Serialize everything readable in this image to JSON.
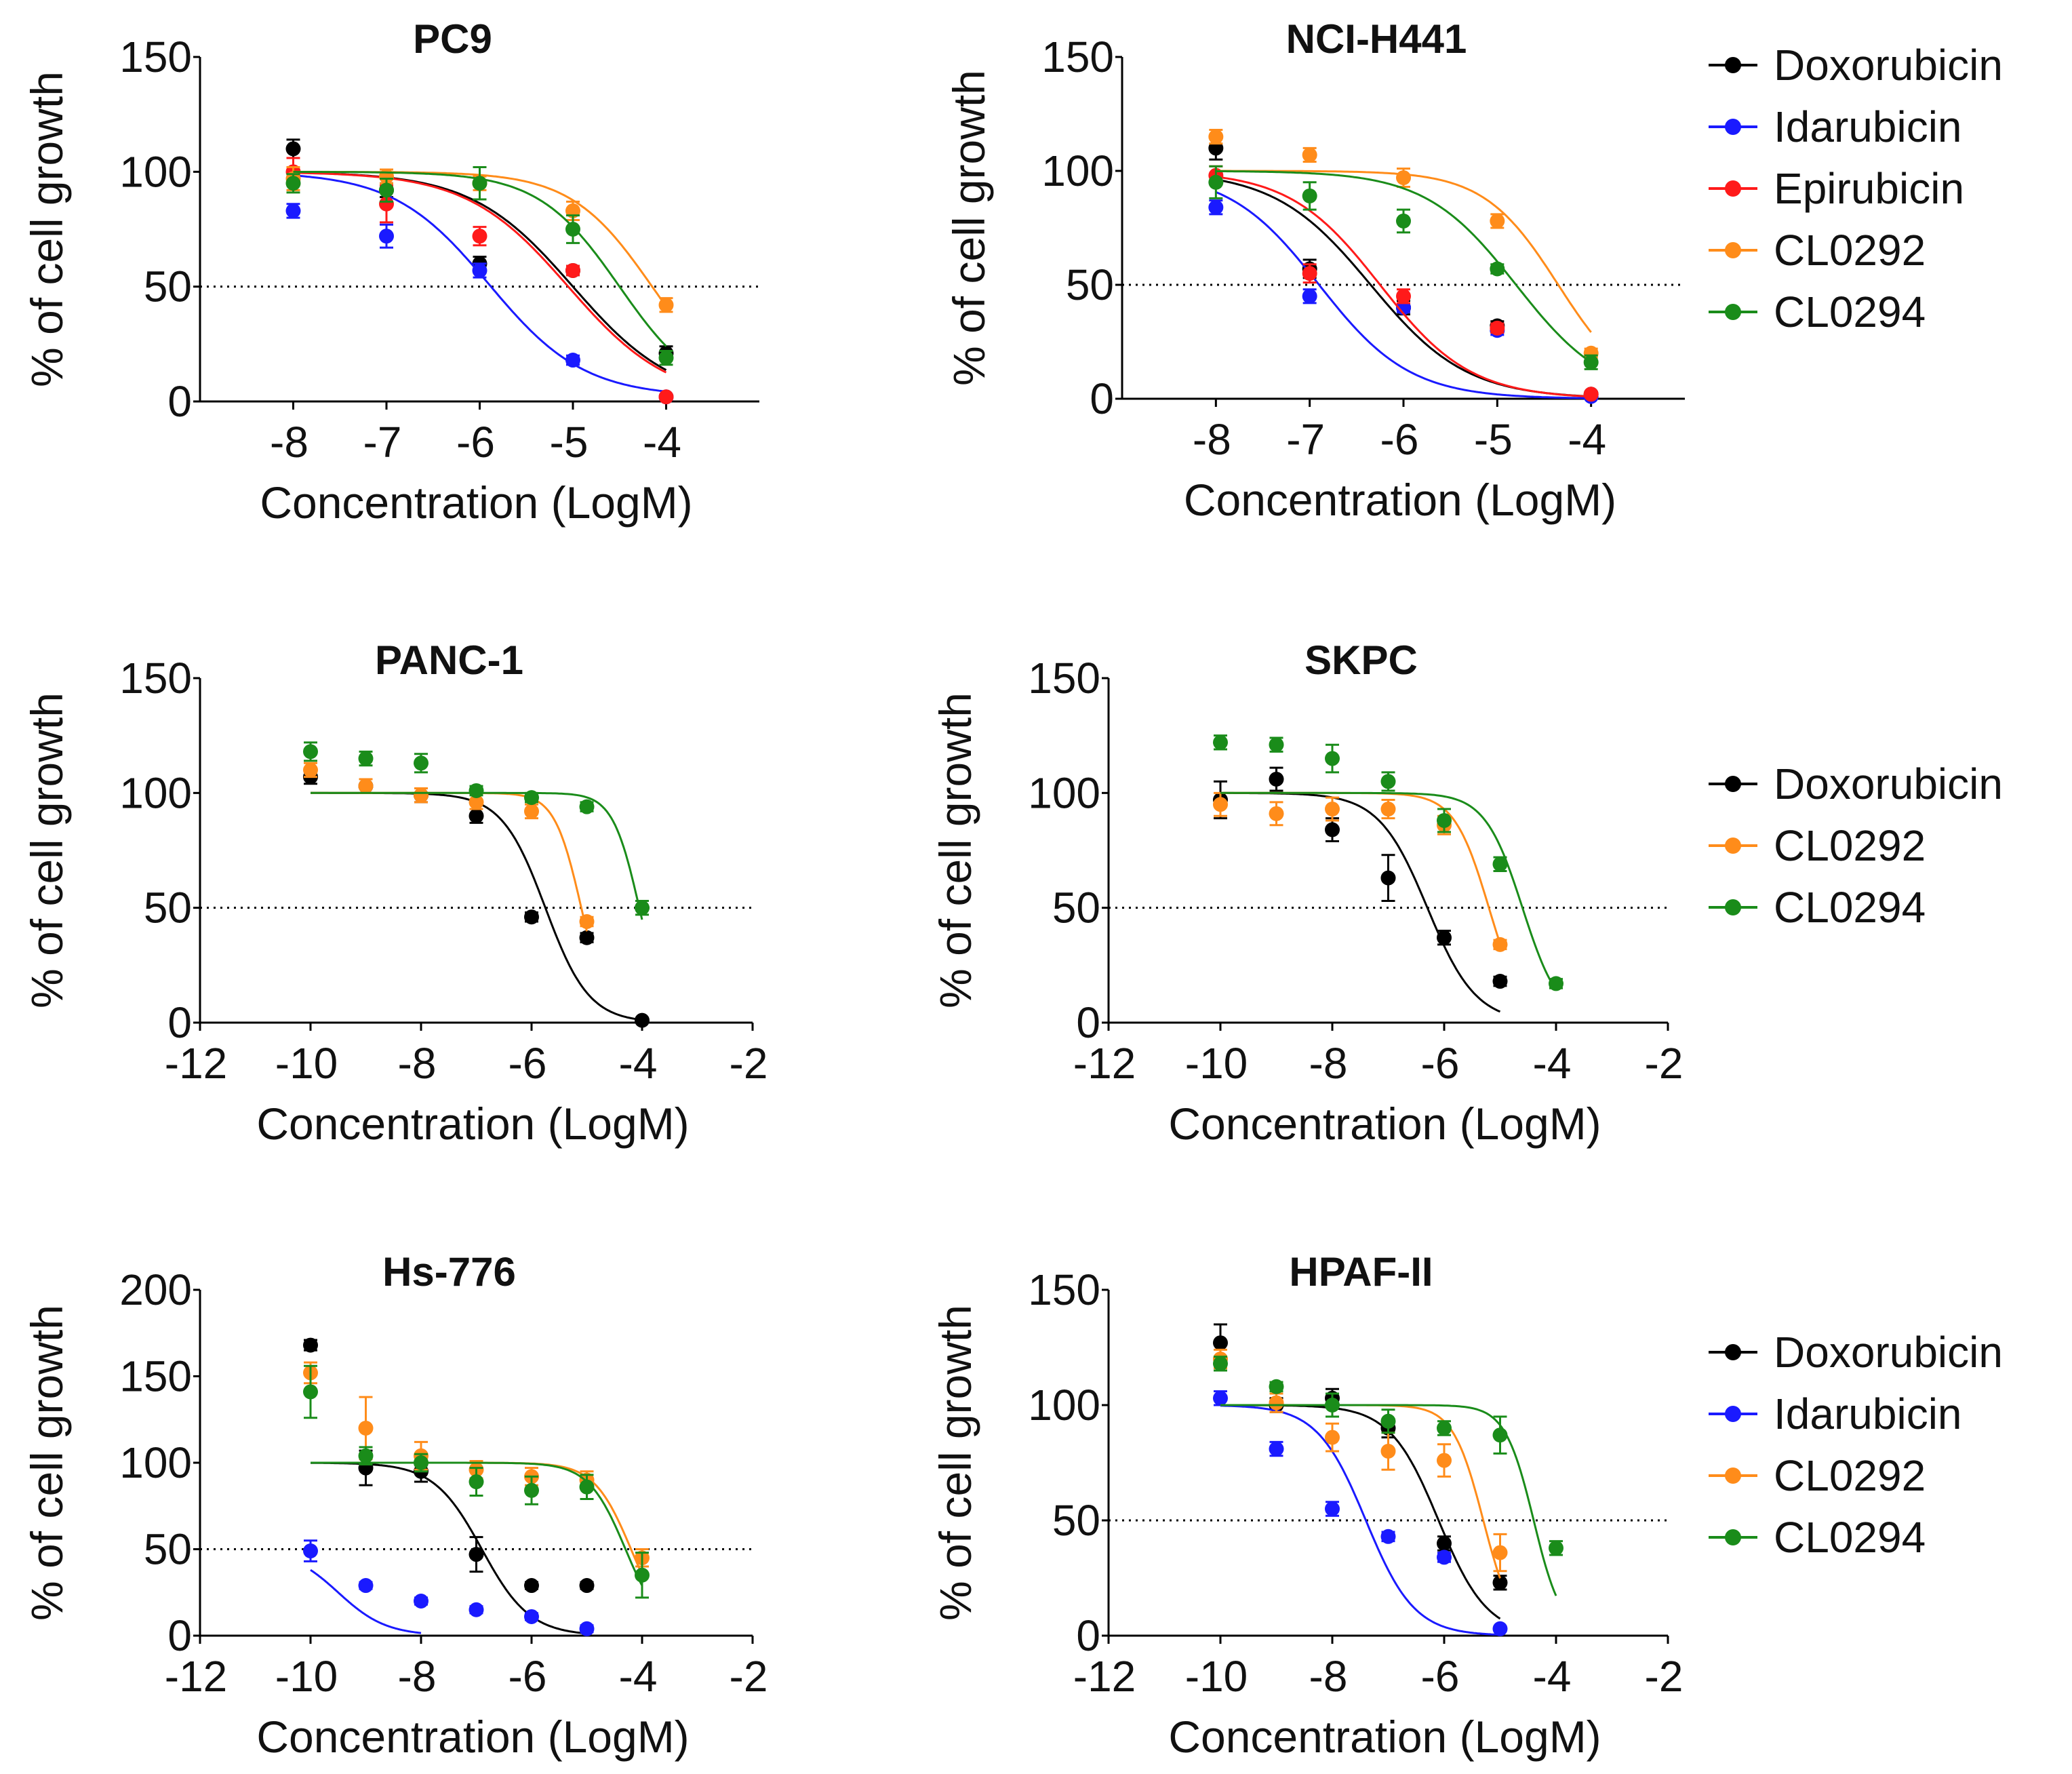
{
  "colors": {
    "Doxorubicin": "#000000",
    "Idarubicin": "#1a1aff",
    "Epirubicin": "#ff1a1a",
    "CL0292": "#ff8c1a",
    "CL0294": "#1a8c1a"
  },
  "legends": [
    [
      "Doxorubicin",
      "Idarubicin",
      "Epirubicin",
      "CL0292",
      "CL0294"
    ],
    [
      "Doxorubicin",
      "CL0292",
      "CL0294"
    ],
    [
      "Doxorubicin",
      "Idarubicin",
      "CL0292",
      "CL0294"
    ]
  ],
  "chart_data": [
    {
      "type": "scatter",
      "title": "PC9",
      "xlabel": "Concentration (LogM)",
      "ylabel": "% of cell growth",
      "xlim": [
        -9,
        -3
      ],
      "ylim": [
        0,
        150
      ],
      "xticks": [
        -8,
        -7,
        -6,
        -5,
        -4
      ],
      "yticks": [
        0,
        50,
        100,
        150
      ],
      "reference_line": 50,
      "series": [
        {
          "name": "Doxorubicin",
          "x": [
            -8,
            -7,
            -6,
            -5,
            -4
          ],
          "y": [
            110,
            92,
            60,
            57,
            21
          ],
          "err": [
            4,
            3,
            3,
            2,
            3
          ],
          "fit": {
            "top": 100,
            "bottom": 0,
            "ic50": -5.0,
            "hill": 0.8
          }
        },
        {
          "name": "Idarubicin",
          "x": [
            -8,
            -7,
            -6,
            -5,
            -4
          ],
          "y": [
            83,
            72,
            57,
            18,
            2
          ],
          "err": [
            3,
            5,
            3,
            2,
            1
          ],
          "fit": {
            "top": 100,
            "bottom": 2,
            "ic50": -5.9,
            "hill": 0.85
          }
        },
        {
          "name": "Epirubicin",
          "x": [
            -8,
            -7,
            -6,
            -5,
            -4
          ],
          "y": [
            100,
            86,
            72,
            57,
            2
          ],
          "err": [
            6,
            8,
            4,
            2,
            1
          ],
          "fit": {
            "top": 100,
            "bottom": 0,
            "ic50": -5.05,
            "hill": 0.8
          }
        },
        {
          "name": "CL0292",
          "x": [
            -8,
            -7,
            -6,
            -5,
            -4
          ],
          "y": [
            97,
            98,
            95,
            83,
            42
          ],
          "err": [
            5,
            3,
            3,
            4,
            3
          ],
          "fit": {
            "top": 100,
            "bottom": 0,
            "ic50": -4.15,
            "hill": 1.0
          }
        },
        {
          "name": "CL0294",
          "x": [
            -8,
            -7,
            -6,
            -5,
            -4
          ],
          "y": [
            95,
            92,
            95,
            75,
            19
          ],
          "err": [
            4,
            5,
            7,
            6,
            3
          ],
          "fit": {
            "top": 100,
            "bottom": 0,
            "ic50": -4.5,
            "hill": 1.0
          }
        }
      ]
    },
    {
      "type": "scatter",
      "title": "NCI-H441",
      "xlabel": "Concentration (LogM)",
      "ylabel": "% of cell growth",
      "xlim": [
        -9,
        -3
      ],
      "ylim": [
        0,
        150
      ],
      "xticks": [
        -8,
        -7,
        -6,
        -5,
        -4
      ],
      "yticks": [
        0,
        50,
        100,
        150
      ],
      "reference_line": 50,
      "series": [
        {
          "name": "Doxorubicin",
          "x": [
            -8,
            -7,
            -6,
            -5,
            -4
          ],
          "y": [
            110,
            57,
            40,
            32,
            2
          ],
          "err": [
            5,
            4,
            3,
            2,
            1
          ],
          "fit": {
            "top": 100,
            "bottom": 0,
            "ic50": -6.35,
            "hill": 0.85
          }
        },
        {
          "name": "Idarubicin",
          "x": [
            -8,
            -7,
            -6,
            -5,
            -4
          ],
          "y": [
            84,
            45,
            40,
            30,
            1
          ],
          "err": [
            3,
            3,
            2,
            2,
            1
          ],
          "fit": {
            "top": 100,
            "bottom": 0,
            "ic50": -6.9,
            "hill": 0.9
          }
        },
        {
          "name": "Epirubicin",
          "x": [
            -8,
            -7,
            -6,
            -5,
            -4
          ],
          "y": [
            98,
            55,
            45,
            31,
            2
          ],
          "err": [
            4,
            4,
            3,
            2,
            1
          ],
          "fit": {
            "top": 100,
            "bottom": 0,
            "ic50": -6.25,
            "hill": 0.9
          }
        },
        {
          "name": "CL0292",
          "x": [
            -8,
            -7,
            -6,
            -5,
            -4
          ],
          "y": [
            115,
            107,
            97,
            78,
            20
          ],
          "err": [
            3,
            3,
            4,
            3,
            2
          ],
          "fit": {
            "top": 100,
            "bottom": 0,
            "ic50": -4.35,
            "hill": 1.1
          }
        },
        {
          "name": "CL0294",
          "x": [
            -8,
            -7,
            -6,
            -5,
            -4
          ],
          "y": [
            95,
            89,
            78,
            57,
            16
          ],
          "err": [
            7,
            6,
            5,
            2,
            3
          ],
          "fit": {
            "top": 100,
            "bottom": 0,
            "ic50": -4.8,
            "hill": 0.9
          }
        }
      ]
    },
    {
      "type": "scatter",
      "title": "PANC-1",
      "xlabel": "Concentration (LogM)",
      "ylabel": "% of cell growth",
      "xlim": [
        -12,
        -2
      ],
      "ylim": [
        0,
        150
      ],
      "xticks": [
        -12,
        -10,
        -8,
        -6,
        -4,
        -2
      ],
      "yticks": [
        0,
        50,
        100,
        150
      ],
      "reference_line": 50,
      "series": [
        {
          "name": "Doxorubicin",
          "x": [
            -10,
            -9,
            -8,
            -7,
            -6,
            -5,
            -4
          ],
          "y": [
            107,
            103,
            99,
            90,
            46,
            37,
            1
          ],
          "err": [
            3,
            3,
            3,
            3,
            2,
            2,
            1
          ],
          "fit": {
            "top": 100,
            "bottom": 0,
            "ic50": -5.75,
            "hill": 1.1
          }
        },
        {
          "name": "CL0292",
          "x": [
            -10,
            -9,
            -8,
            -7,
            -6,
            -5
          ],
          "y": [
            110,
            103,
            99,
            96,
            92,
            44
          ],
          "err": [
            3,
            3,
            3,
            3,
            3,
            2
          ],
          "fit": {
            "top": 100,
            "bottom": 0,
            "ic50": -5.1,
            "hill": 1.8
          }
        },
        {
          "name": "CL0294",
          "x": [
            -10,
            -9,
            -8,
            -7,
            -6,
            -5,
            -4
          ],
          "y": [
            118,
            115,
            113,
            101,
            98,
            94,
            50
          ],
          "err": [
            4,
            3,
            4,
            2,
            2,
            2,
            3
          ],
          "fit": {
            "top": 100,
            "bottom": 0,
            "ic50": -4.05,
            "hill": 1.8
          }
        }
      ]
    },
    {
      "type": "scatter",
      "title": "SKPC",
      "xlabel": "Concentration (LogM)",
      "ylabel": "% of cell growth",
      "xlim": [
        -12,
        -2
      ],
      "ylim": [
        0,
        150
      ],
      "xticks": [
        -12,
        -10,
        -8,
        -6,
        -4,
        -2
      ],
      "yticks": [
        0,
        50,
        100,
        150
      ],
      "reference_line": 50,
      "series": [
        {
          "name": "Doxorubicin",
          "x": [
            -10,
            -9,
            -8,
            -7,
            -6,
            -5
          ],
          "y": [
            97,
            106,
            84,
            63,
            37,
            18
          ],
          "err": [
            8,
            5,
            5,
            10,
            3,
            2
          ],
          "fit": {
            "top": 100,
            "bottom": 0,
            "ic50": -6.3,
            "hill": 1.0
          }
        },
        {
          "name": "CL0292",
          "x": [
            -10,
            -9,
            -8,
            -7,
            -6,
            -5
          ],
          "y": [
            95,
            91,
            93,
            93,
            86,
            34
          ],
          "err": [
            5,
            5,
            5,
            4,
            4,
            2
          ],
          "fit": {
            "top": 100,
            "bottom": 0,
            "ic50": -5.2,
            "hill": 1.4
          }
        },
        {
          "name": "CL0294",
          "x": [
            -10,
            -9,
            -8,
            -7,
            -6,
            -5,
            -4
          ],
          "y": [
            122,
            121,
            115,
            105,
            88,
            69,
            17
          ],
          "err": [
            3,
            3,
            6,
            4,
            5,
            3,
            2
          ],
          "fit": {
            "top": 100,
            "bottom": 0,
            "ic50": -4.6,
            "hill": 1.3
          }
        }
      ]
    },
    {
      "type": "scatter",
      "title": "Hs-776",
      "xlabel": "Concentration (LogM)",
      "ylabel": "% of cell growth",
      "xlim": [
        -12,
        -2
      ],
      "ylim": [
        0,
        200
      ],
      "xticks": [
        -12,
        -10,
        -8,
        -6,
        -4,
        -2
      ],
      "yticks": [
        0,
        50,
        100,
        150,
        200
      ],
      "reference_line": 50,
      "series": [
        {
          "name": "Doxorubicin",
          "x": [
            -10,
            -9,
            -8,
            -7,
            -6,
            -5
          ],
          "y": [
            168,
            97,
            95,
            47,
            29,
            29
          ],
          "err": [
            3,
            10,
            6,
            10,
            2,
            2
          ],
          "fit": {
            "top": 100,
            "bottom": 0,
            "ic50": -6.9,
            "hill": 1.0
          }
        },
        {
          "name": "Idarubicin",
          "x": [
            -10,
            -9,
            -8,
            -7,
            -6,
            -5
          ],
          "y": [
            49,
            29,
            20,
            15,
            11,
            4
          ],
          "err": [
            6,
            2,
            2,
            2,
            2,
            2
          ],
          "fit": {
            "top": 50,
            "bottom": 0,
            "ic50": -9.5,
            "hill": 1.0
          },
          "fit_range": [
            -10,
            -8
          ]
        },
        {
          "name": "CL0292",
          "x": [
            -10,
            -9,
            -8,
            -7,
            -6,
            -5,
            -4
          ],
          "y": [
            152,
            120,
            104,
            96,
            92,
            90,
            45
          ],
          "err": [
            6,
            18,
            8,
            5,
            5,
            5,
            5
          ],
          "fit": {
            "top": 100,
            "bottom": 0,
            "ic50": -4.2,
            "hill": 1.3
          }
        },
        {
          "name": "CL0294",
          "x": [
            -10,
            -9,
            -8,
            -7,
            -6,
            -5,
            -4
          ],
          "y": [
            141,
            104,
            100,
            89,
            84,
            86,
            35
          ],
          "err": [
            15,
            5,
            5,
            8,
            8,
            7,
            13
          ],
          "fit": {
            "top": 100,
            "bottom": 0,
            "ic50": -4.3,
            "hill": 1.3
          }
        }
      ]
    },
    {
      "type": "scatter",
      "title": "HPAF-II",
      "xlabel": "Concentration (LogM)",
      "ylabel": "% of cell growth",
      "xlim": [
        -12,
        -2
      ],
      "ylim": [
        0,
        150
      ],
      "xticks": [
        -12,
        -10,
        -8,
        -6,
        -4,
        -2
      ],
      "yticks": [
        0,
        50,
        100,
        150
      ],
      "reference_line": 50,
      "series": [
        {
          "name": "Doxorubicin",
          "x": [
            -10,
            -9,
            -8,
            -7,
            -6,
            -5
          ],
          "y": [
            127,
            100,
            103,
            90,
            40,
            23
          ],
          "err": [
            8,
            3,
            4,
            4,
            3,
            3
          ],
          "fit": {
            "top": 100,
            "bottom": 0,
            "ic50": -6.1,
            "hill": 1.0
          }
        },
        {
          "name": "Idarubicin",
          "x": [
            -10,
            -9,
            -8,
            -7,
            -6,
            -5
          ],
          "y": [
            103,
            81,
            55,
            43,
            34,
            3
          ],
          "err": [
            3,
            3,
            3,
            2,
            2,
            1
          ],
          "fit": {
            "top": 100,
            "bottom": 0,
            "ic50": -7.4,
            "hill": 1.0
          }
        },
        {
          "name": "CL0292",
          "x": [
            -10,
            -9,
            -8,
            -7,
            -6,
            -5
          ],
          "y": [
            120,
            101,
            86,
            80,
            76,
            36
          ],
          "err": [
            4,
            4,
            6,
            8,
            7,
            8
          ],
          "fit": {
            "top": 100,
            "bottom": 0,
            "ic50": -5.3,
            "hill": 1.6
          }
        },
        {
          "name": "CL0294",
          "x": [
            -10,
            -9,
            -8,
            -7,
            -6,
            -5,
            -4
          ],
          "y": [
            118,
            108,
            100,
            93,
            90,
            87,
            38
          ],
          "err": [
            3,
            2,
            5,
            5,
            3,
            8,
            3
          ],
          "fit": {
            "top": 100,
            "bottom": 0,
            "ic50": -4.4,
            "hill": 1.7
          }
        }
      ]
    }
  ]
}
